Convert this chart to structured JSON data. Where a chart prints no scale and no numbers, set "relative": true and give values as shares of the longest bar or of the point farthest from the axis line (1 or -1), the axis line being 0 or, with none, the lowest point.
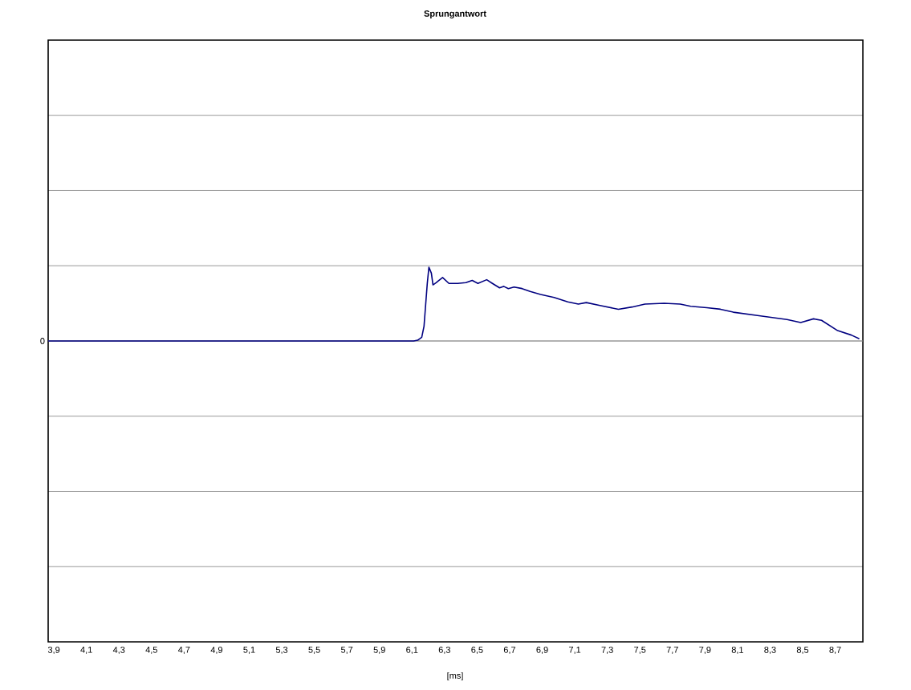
{
  "chart_data": {
    "type": "line",
    "title": "Sprungantwort",
    "xlabel": "[ms]",
    "relative": true,
    "grid": "y",
    "xlim": [
      3.865,
      8.87
    ],
    "xticks": [
      {
        "value": 3.9,
        "label": "3,9"
      },
      {
        "value": 4.1,
        "label": "4,1"
      },
      {
        "value": 4.3,
        "label": "4,3"
      },
      {
        "value": 4.5,
        "label": "4,5"
      },
      {
        "value": 4.7,
        "label": "4,7"
      },
      {
        "value": 4.9,
        "label": "4,9"
      },
      {
        "value": 5.1,
        "label": "5,1"
      },
      {
        "value": 5.3,
        "label": "5,3"
      },
      {
        "value": 5.5,
        "label": "5,5"
      },
      {
        "value": 5.7,
        "label": "5,7"
      },
      {
        "value": 5.9,
        "label": "5,9"
      },
      {
        "value": 6.1,
        "label": "6,1"
      },
      {
        "value": 6.3,
        "label": "6,3"
      },
      {
        "value": 6.5,
        "label": "6,5"
      },
      {
        "value": 6.7,
        "label": "6,7"
      },
      {
        "value": 6.9,
        "label": "6,9"
      },
      {
        "value": 7.1,
        "label": "7,1"
      },
      {
        "value": 7.3,
        "label": "7,3"
      },
      {
        "value": 7.5,
        "label": "7,5"
      },
      {
        "value": 7.7,
        "label": "7,7"
      },
      {
        "value": 7.9,
        "label": "7,9"
      },
      {
        "value": 8.1,
        "label": "8,1"
      },
      {
        "value": 8.3,
        "label": "8,3"
      },
      {
        "value": 8.5,
        "label": "8,5"
      },
      {
        "value": 8.7,
        "label": "8,7"
      }
    ],
    "ref_lines": [
      {
        "axis": "y",
        "value": 0,
        "label": "0"
      }
    ],
    "series": [
      {
        "color": "#000080",
        "x": [
          3.865,
          5.05,
          6.11,
          6.135,
          6.16,
          6.174,
          6.194,
          6.204,
          6.219,
          6.229,
          6.248,
          6.288,
          6.327,
          6.381,
          6.431,
          6.47,
          6.505,
          6.559,
          6.594,
          6.638,
          6.663,
          6.692,
          6.727,
          6.776,
          6.826,
          6.89,
          6.973,
          7.057,
          7.122,
          7.171,
          7.255,
          7.368,
          7.452,
          7.531,
          7.649,
          7.748,
          7.812,
          7.911,
          7.995,
          8.074,
          8.241,
          8.404,
          8.488,
          8.567,
          8.616,
          8.715,
          8.799,
          8.848
        ],
        "values": [
          0,
          0,
          0,
          0.01,
          0.05,
          0.2,
          0.78,
          1,
          0.92,
          0.76,
          0.79,
          0.86,
          0.78,
          0.78,
          0.79,
          0.82,
          0.78,
          0.83,
          0.78,
          0.72,
          0.74,
          0.71,
          0.73,
          0.71,
          0.67,
          0.63,
          0.59,
          0.53,
          0.5,
          0.52,
          0.48,
          0.43,
          0.46,
          0.5,
          0.51,
          0.5,
          0.47,
          0.45,
          0.43,
          0.39,
          0.34,
          0.29,
          0.25,
          0.3,
          0.28,
          0.14,
          0.08,
          0.03
        ]
      }
    ]
  }
}
